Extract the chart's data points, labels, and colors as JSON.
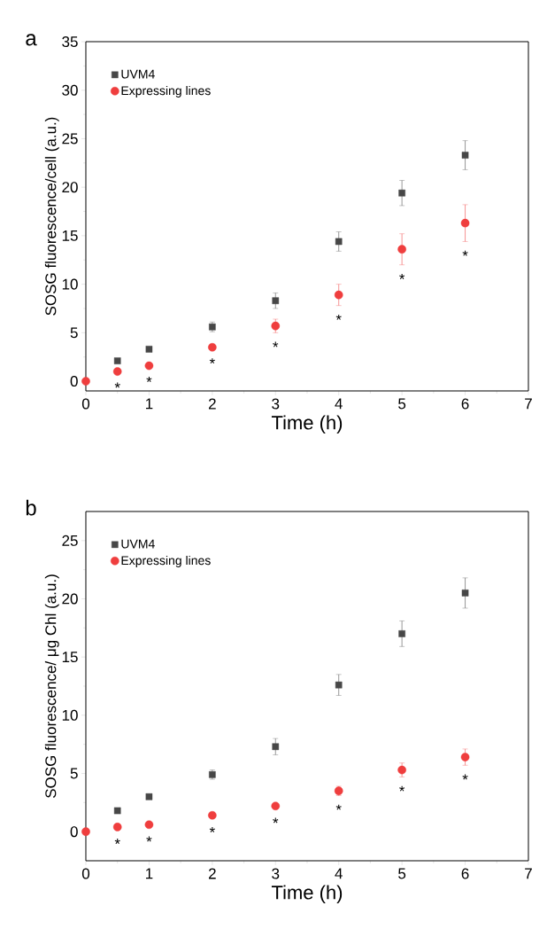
{
  "chart_data": [
    {
      "type": "scatter",
      "title": "a",
      "xlabel": "Time (h)",
      "ylabel": "SOSG fluorescence/cell  (a.u.)",
      "x": [
        0,
        0.5,
        1,
        2,
        3,
        4,
        5,
        6
      ],
      "xlim": [
        0,
        7
      ],
      "xticks": [
        0,
        1,
        2,
        3,
        4,
        5,
        6,
        7
      ],
      "ylim": [
        -1,
        35
      ],
      "yticks": [
        0,
        5,
        10,
        15,
        20,
        25,
        30,
        35
      ],
      "legend": "top left",
      "grid": false,
      "series": [
        {
          "name": "UVM4",
          "color": "#474747",
          "marker": "square",
          "values": [
            null,
            2.1,
            3.3,
            5.6,
            8.3,
            14.4,
            19.4,
            23.3
          ],
          "errors": [
            null,
            0.2,
            0.2,
            0.5,
            0.8,
            1.0,
            1.3,
            1.5
          ]
        },
        {
          "name": "Expressing lines",
          "color": "#ef3e3e",
          "marker": "circle",
          "values": [
            0,
            1.0,
            1.6,
            3.5,
            5.7,
            8.9,
            13.6,
            16.3
          ],
          "errors": [
            null,
            0.2,
            0.2,
            0.2,
            0.7,
            1.1,
            1.6,
            1.9
          ]
        }
      ],
      "annotations": [
        "*",
        "*",
        "*",
        "*",
        "*",
        "*",
        "*"
      ]
    },
    {
      "type": "scatter",
      "title": "b",
      "xlabel": "Time (h)",
      "ylabel": "SOSG fluorescence/ μg Chl (a.u.)",
      "x": [
        0,
        0.5,
        1,
        2,
        3,
        4,
        5,
        6
      ],
      "xlim": [
        0,
        7
      ],
      "xticks": [
        0,
        1,
        2,
        3,
        4,
        5,
        6,
        7
      ],
      "ylim": [
        -2.5,
        27.5
      ],
      "yticks": [
        0,
        5,
        10,
        15,
        20,
        25
      ],
      "legend": "top left",
      "grid": false,
      "series": [
        {
          "name": "UVM4",
          "color": "#474747",
          "marker": "square",
          "values": [
            null,
            1.8,
            3.0,
            4.9,
            7.3,
            12.6,
            17.0,
            20.5
          ],
          "errors": [
            null,
            0.2,
            0.2,
            0.4,
            0.7,
            0.9,
            1.1,
            1.3
          ]
        },
        {
          "name": "Expressing lines",
          "color": "#ef3e3e",
          "marker": "circle",
          "values": [
            0,
            0.4,
            0.6,
            1.4,
            2.2,
            3.5,
            5.3,
            6.4
          ],
          "errors": [
            null,
            null,
            null,
            null,
            null,
            0.4,
            0.6,
            0.7
          ]
        }
      ],
      "annotations": [
        "*",
        "*",
        "*",
        "*",
        "*",
        "*",
        "*"
      ]
    }
  ]
}
